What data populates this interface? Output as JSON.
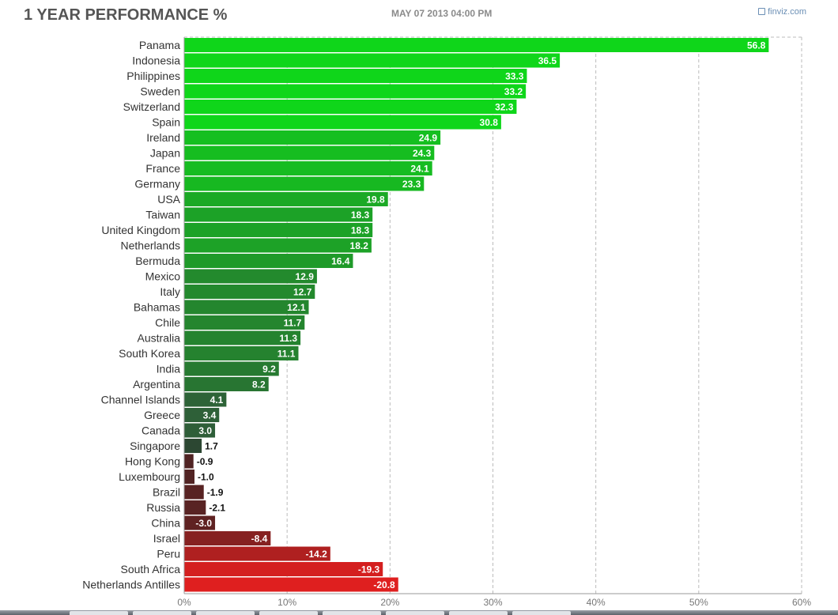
{
  "header": {
    "title": "1 YEAR PERFORMANCE %",
    "timestamp": "MAY 07 2013 04:00 PM",
    "brand": "finviz.com"
  },
  "colors": {
    "positive_bright": "#0fd61a",
    "positive_dark": "#2e5e38",
    "neutral_dark": "#2a2a2a",
    "negative_dark": "#4a2323",
    "negative_bright": "#e01f1f",
    "grid": "#bbbbbb",
    "label_text": "#333333"
  },
  "chart_data": {
    "type": "bar",
    "orientation": "horizontal",
    "categories": [
      "Panama",
      "Indonesia",
      "Philippines",
      "Sweden",
      "Switzerland",
      "Spain",
      "Ireland",
      "Japan",
      "France",
      "Germany",
      "USA",
      "Taiwan",
      "United Kingdom",
      "Netherlands",
      "Bermuda",
      "Mexico",
      "Italy",
      "Bahamas",
      "Chile",
      "Australia",
      "South Korea",
      "India",
      "Argentina",
      "Channel Islands",
      "Greece",
      "Canada",
      "Singapore",
      "Hong Kong",
      "Luxembourg",
      "Brazil",
      "Russia",
      "China",
      "Israel",
      "Peru",
      "South Africa",
      "Netherlands Antilles"
    ],
    "values": [
      56.8,
      36.5,
      33.3,
      33.2,
      32.3,
      30.8,
      24.9,
      24.3,
      24.1,
      23.3,
      19.8,
      18.3,
      18.3,
      18.2,
      16.4,
      12.9,
      12.7,
      12.1,
      11.7,
      11.3,
      11.1,
      9.2,
      8.2,
      4.1,
      3.4,
      3.0,
      1.7,
      -0.9,
      -1.0,
      -1.9,
      -2.1,
      -3.0,
      -8.4,
      -14.2,
      -19.3,
      -20.8
    ],
    "value_labels": [
      "56.8",
      "36.5",
      "33.3",
      "33.2",
      "32.3",
      "30.8",
      "24.9",
      "24.3",
      "24.1",
      "23.3",
      "19.8",
      "18.3",
      "18.3",
      "18.2",
      "16.4",
      "12.9",
      "12.7",
      "12.1",
      "11.7",
      "11.3",
      "11.1",
      "9.2",
      "8.2",
      "4.1",
      "3.4",
      "3.0",
      "1.7",
      "-0.9",
      "-1.0",
      "-1.9",
      "-2.1",
      "-3.0",
      "-8.4",
      "-14.2",
      "-19.3",
      "-20.8"
    ],
    "bar_extent": "absolute value",
    "xlim": [
      0,
      60
    ],
    "xticks": [
      0,
      10,
      20,
      30,
      40,
      50,
      60
    ],
    "xtick_labels": [
      "0%",
      "10%",
      "20%",
      "30%",
      "40%",
      "50%",
      "60%"
    ],
    "title": "1 YEAR PERFORMANCE %",
    "xlabel": "",
    "ylabel": "",
    "grid": "vertical dashed",
    "legend": "none"
  }
}
